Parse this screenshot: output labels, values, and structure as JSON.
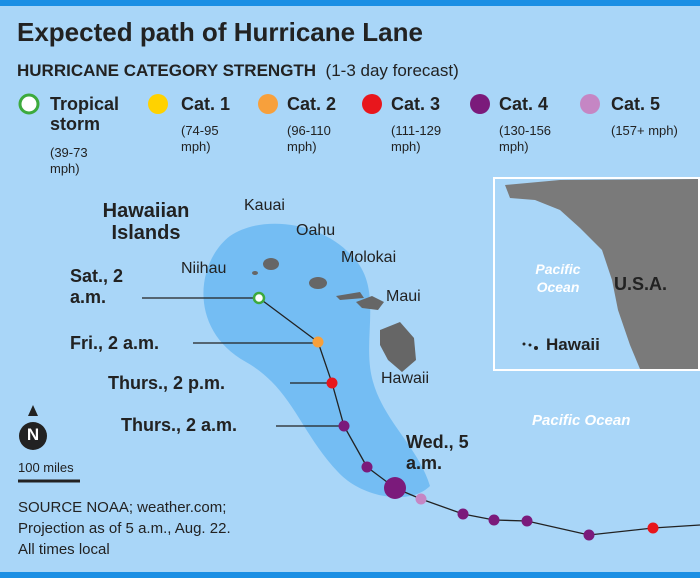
{
  "title": "Expected path of Hurricane Lane",
  "subtitle": "HURRICANE CATEGORY STRENGTH",
  "subtitle_note": "(1-3 day forecast)",
  "legend": [
    {
      "label": "Tropical storm",
      "range": "(39-73 mph)"
    },
    {
      "label": "Cat. 1",
      "range": "(74-95 mph)"
    },
    {
      "label": "Cat. 2",
      "range": "(96-110 mph)"
    },
    {
      "label": "Cat. 3",
      "range": "(111-129 mph)"
    },
    {
      "label": "Cat. 4",
      "range": "(130-156 mph)"
    },
    {
      "label": "Cat. 5",
      "range": "(157+ mph)"
    }
  ],
  "map": {
    "region": "Hawaiian Islands",
    "islands": [
      "Kauai",
      "Oahu",
      "Niihau",
      "Molokai",
      "Maui",
      "Hawaii"
    ],
    "ocean": "Pacific Ocean",
    "track_labels": [
      "Sat., 2 a.m.",
      "Fri., 2 a.m.",
      "Thurs., 2 p.m.",
      "Thurs., 2 a.m.",
      "Wed., 5 a.m."
    ],
    "compass": "N",
    "scale": "100 miles"
  },
  "inset": {
    "ocean": "Pacific Ocean",
    "country": "U.S.A.",
    "state": "Hawaii"
  },
  "source": [
    "SOURCE NOAA; weather.com;",
    "Projection as of 5 a.m., Aug. 22.",
    "All times local"
  ]
}
